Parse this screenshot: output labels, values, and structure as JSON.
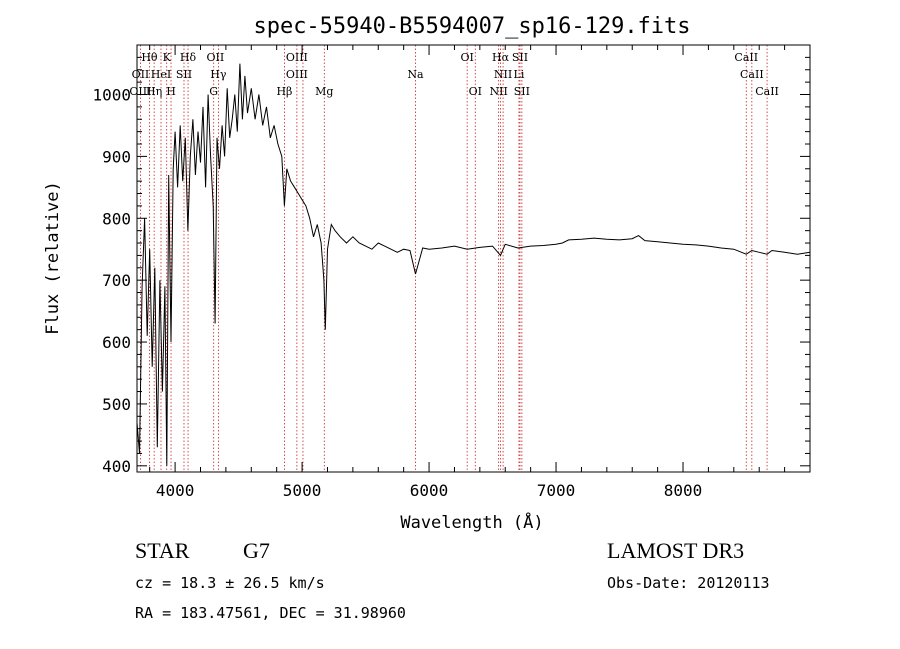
{
  "chart_data": {
    "type": "line",
    "title": "spec-55940-B5594007_sp16-129.fits",
    "xlabel": "Wavelength (Å)",
    "ylabel": "Flux (relative)",
    "xlim": [
      3700,
      9000
    ],
    "ylim": [
      390,
      1080
    ],
    "xticks": [
      4000,
      5000,
      6000,
      7000,
      8000
    ],
    "yticks": [
      400,
      500,
      600,
      700,
      800,
      900,
      1000
    ],
    "series": [
      {
        "name": "spectrum",
        "x": [
          3700,
          3720,
          3740,
          3760,
          3780,
          3800,
          3820,
          3840,
          3860,
          3880,
          3900,
          3920,
          3935,
          3950,
          3968,
          3985,
          4000,
          4020,
          4040,
          4060,
          4080,
          4101,
          4120,
          4140,
          4160,
          4180,
          4200,
          4220,
          4240,
          4260,
          4280,
          4300,
          4315,
          4330,
          4350,
          4370,
          4390,
          4410,
          4430,
          4450,
          4470,
          4490,
          4510,
          4530,
          4550,
          4570,
          4600,
          4630,
          4660,
          4690,
          4720,
          4750,
          4780,
          4810,
          4840,
          4861,
          4880,
          4910,
          4940,
          4970,
          5000,
          5030,
          5060,
          5090,
          5120,
          5150,
          5172,
          5183,
          5200,
          5230,
          5260,
          5300,
          5350,
          5400,
          5450,
          5500,
          5550,
          5600,
          5650,
          5700,
          5750,
          5800,
          5850,
          5893,
          5950,
          6000,
          6100,
          6200,
          6300,
          6400,
          6500,
          6563,
          6600,
          6700,
          6800,
          6900,
          7000,
          7050,
          7100,
          7200,
          7300,
          7400,
          7500,
          7600,
          7650,
          7700,
          7800,
          7900,
          8000,
          8100,
          8200,
          8300,
          8400,
          8498,
          8542,
          8600,
          8662,
          8700,
          8800,
          8900,
          9000
        ],
        "y": [
          470,
          420,
          690,
          800,
          610,
          750,
          560,
          720,
          430,
          700,
          520,
          690,
          400,
          870,
          600,
          880,
          940,
          850,
          950,
          860,
          930,
          780,
          900,
          960,
          870,
          940,
          890,
          980,
          850,
          1000,
          900,
          820,
          630,
          930,
          880,
          950,
          900,
          1010,
          930,
          960,
          1000,
          940,
          1050,
          960,
          1030,
          970,
          1010,
          960,
          1000,
          950,
          980,
          930,
          950,
          920,
          900,
          820,
          880,
          860,
          850,
          840,
          830,
          820,
          800,
          770,
          790,
          760,
          700,
          620,
          750,
          790,
          780,
          770,
          760,
          770,
          760,
          755,
          750,
          760,
          755,
          750,
          745,
          750,
          748,
          710,
          752,
          750,
          752,
          755,
          750,
          753,
          755,
          740,
          758,
          752,
          755,
          756,
          758,
          760,
          765,
          766,
          768,
          766,
          765,
          767,
          772,
          764,
          762,
          760,
          758,
          757,
          755,
          752,
          750,
          742,
          748,
          745,
          742,
          748,
          745,
          742,
          745
        ]
      }
    ],
    "lines": [
      {
        "name": "Hθ",
        "x": 3798,
        "row": 0
      },
      {
        "name": "OII",
        "x": 3727,
        "row": 1
      },
      {
        "name": "OIII",
        "x": 3727,
        "row": 2
      },
      {
        "name": "K",
        "x": 3934,
        "row": 0
      },
      {
        "name": "Hδ",
        "x": 4102,
        "row": 0
      },
      {
        "name": "HeI",
        "x": 3889,
        "row": 1
      },
      {
        "name": "Hη",
        "x": 3835,
        "row": 2
      },
      {
        "name": "SII",
        "x": 4070,
        "row": 1
      },
      {
        "name": "H",
        "x": 3968,
        "row": 2
      },
      {
        "name": "OII",
        "x": 4317,
        "row": 0
      },
      {
        "name": "Hγ",
        "x": 4341,
        "row": 1
      },
      {
        "name": "G",
        "x": 4304,
        "row": 2
      },
      {
        "name": "OIII",
        "x": 4959,
        "row": 0
      },
      {
        "name": "OIII",
        "x": 4959,
        "row": 1
      },
      {
        "name": "Hβ",
        "x": 4861,
        "row": 2
      },
      {
        "name": "Mg",
        "x": 5175,
        "row": 2
      },
      {
        "name": "Na",
        "x": 5893,
        "row": 1
      },
      {
        "name": "OI",
        "x": 6300,
        "row": 0
      },
      {
        "name": "OI",
        "x": 6364,
        "row": 2
      },
      {
        "name": "Hα",
        "x": 6563,
        "row": 0
      },
      {
        "name": "SII",
        "x": 6716,
        "row": 0
      },
      {
        "name": "NII",
        "x": 6583,
        "row": 1
      },
      {
        "name": "Li",
        "x": 6708,
        "row": 1
      },
      {
        "name": "NII",
        "x": 6548,
        "row": 2
      },
      {
        "name": "SII",
        "x": 6731,
        "row": 2
      },
      {
        "name": "CaII",
        "x": 8498,
        "row": 0
      },
      {
        "name": "CaII",
        "x": 8542,
        "row": 1
      },
      {
        "name": "CaII",
        "x": 8662,
        "row": 2
      }
    ],
    "line_marker_x": [
      3727,
      3798,
      3835,
      3889,
      3934,
      3968,
      4070,
      4102,
      4304,
      4341,
      4861,
      4959,
      5007,
      5175,
      5893,
      6300,
      6364,
      6548,
      6563,
      6583,
      6708,
      6716,
      6731,
      8498,
      8542,
      8662
    ]
  },
  "info": {
    "class": "STAR",
    "subclass": "G7",
    "survey": "LAMOST DR3",
    "cz": "cz = 18.3 ± 26.5 km/s",
    "obs_date": "Obs-Date: 20120113",
    "coords": "RA = 183.47561, DEC =  31.98960"
  },
  "colors": {
    "line_marker": "#cc2222",
    "spectrum": "#000000"
  }
}
